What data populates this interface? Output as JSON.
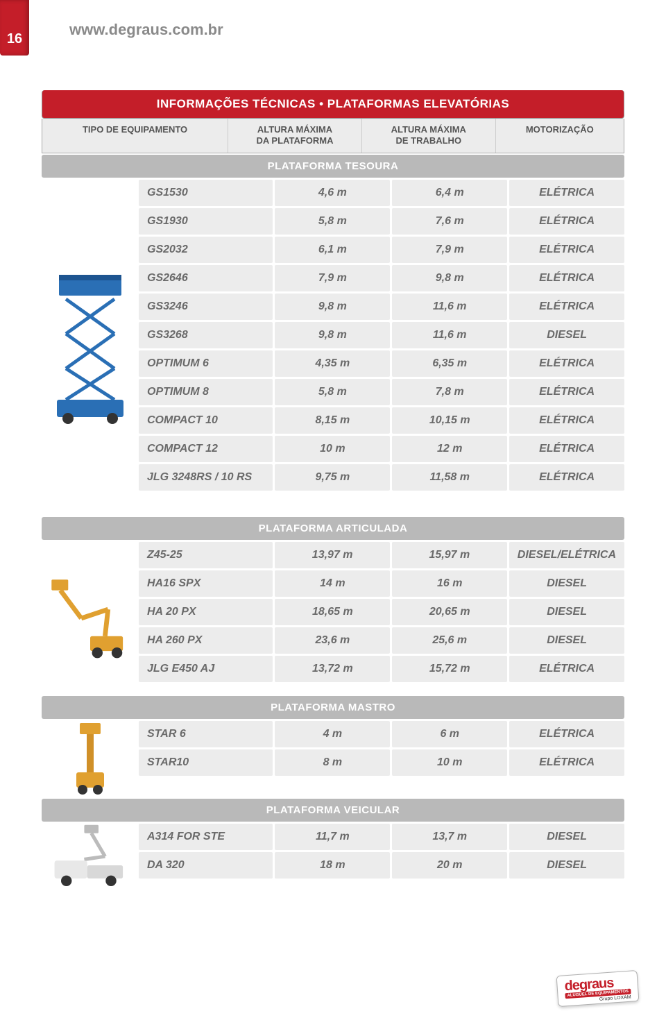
{
  "page_number": "16",
  "url": "www.degraus.com.br",
  "title": "INFORMAÇÕES TÉCNICAS • PLATAFORMAS ELEVATÓRIAS",
  "columns": {
    "c1": "TIPO DE EQUIPAMENTO",
    "c2_line1": "ALTURA MÁXIMA",
    "c2_line2": "DA PLATAFORMA",
    "c3_line1": "ALTURA MÁXIMA",
    "c3_line2": "DE TRABALHO",
    "c4": "MOTORIZAÇÃO"
  },
  "sections": [
    {
      "name": "PLATAFORMA TESOURA",
      "image": "scissor",
      "rows": [
        [
          "GS1530",
          "4,6 m",
          "6,4 m",
          "ELÉTRICA"
        ],
        [
          "GS1930",
          "5,8 m",
          "7,6 m",
          "ELÉTRICA"
        ],
        [
          "GS2032",
          "6,1 m",
          "7,9 m",
          "ELÉTRICA"
        ],
        [
          "GS2646",
          "7,9 m",
          "9,8 m",
          "ELÉTRICA"
        ],
        [
          "GS3246",
          "9,8 m",
          "11,6 m",
          "ELÉTRICA"
        ],
        [
          "GS3268",
          "9,8 m",
          "11,6 m",
          "DIESEL"
        ],
        [
          "OPTIMUM 6",
          "4,35 m",
          "6,35 m",
          "ELÉTRICA"
        ],
        [
          "OPTIMUM 8",
          "5,8 m",
          "7,8 m",
          "ELÉTRICA"
        ],
        [
          "COMPACT 10",
          "8,15 m",
          "10,15 m",
          "ELÉTRICA"
        ],
        [
          "COMPACT 12",
          "10 m",
          "12 m",
          "ELÉTRICA"
        ],
        [
          "JLG 3248RS / 10 RS",
          "9,75 m",
          "11,58 m",
          "ELÉTRICA"
        ]
      ]
    },
    {
      "name": "PLATAFORMA ARTICULADA",
      "image": "boom",
      "rows": [
        [
          "Z45-25",
          "13,97 m",
          "15,97 m",
          "DIESEL/ELÉTRICA"
        ],
        [
          "HA16 SPX",
          "14 m",
          "16 m",
          "DIESEL"
        ],
        [
          "HA 20 PX",
          "18,65 m",
          "20,65 m",
          "DIESEL"
        ],
        [
          "HA 260 PX",
          "23,6 m",
          "25,6 m",
          "DIESEL"
        ],
        [
          "JLG E450 AJ",
          "13,72 m",
          "15,72 m",
          "ELÉTRICA"
        ]
      ]
    },
    {
      "name": "PLATAFORMA MASTRO",
      "image": "mast",
      "rows": [
        [
          "STAR 6",
          "4 m",
          "6 m",
          "ELÉTRICA"
        ],
        [
          "STAR10",
          "8 m",
          "10 m",
          "ELÉTRICA"
        ]
      ]
    },
    {
      "name": "PLATAFORMA VEICULAR",
      "image": "vehicle",
      "rows": [
        [
          "A314 FOR STE",
          "11,7 m",
          "13,7 m",
          "DIESEL"
        ],
        [
          "DA 320",
          "18 m",
          "20 m",
          "DIESEL"
        ]
      ]
    }
  ],
  "logo": {
    "brand": "degraus",
    "tagline": "ALUGUEL DE EQUIPAMENTOS",
    "group": "Grupo LOXAM"
  },
  "colors": {
    "brand_red": "#c41e29",
    "header_grey": "#b9b9b9",
    "cell_bg": "#ececec",
    "text_grey": "#6a6a6a",
    "url_grey": "#8a8a8a"
  }
}
